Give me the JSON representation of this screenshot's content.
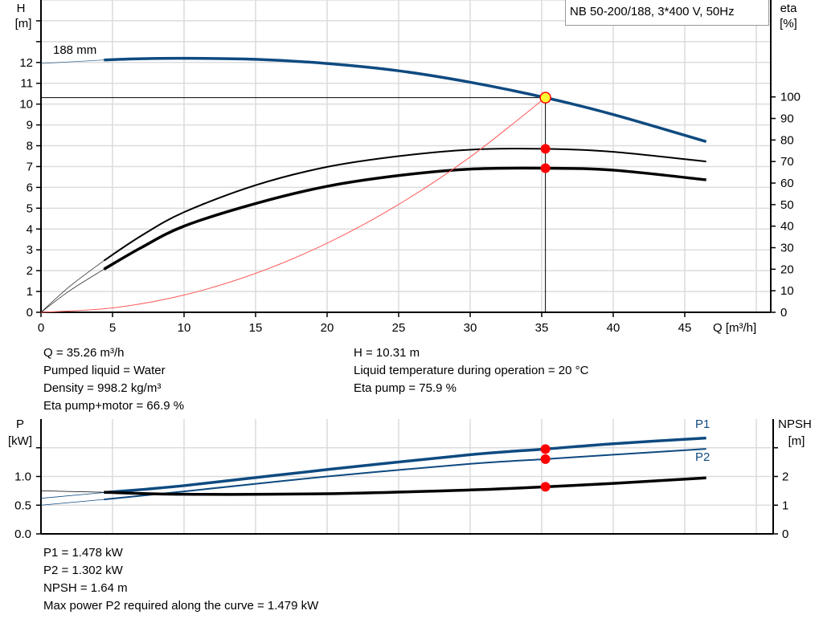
{
  "chart_data": [
    {
      "type": "line",
      "title": "NB 50-200/188, 3*400 V, 50Hz",
      "impeller_label": "188 mm",
      "xlabel": "Q [m³/h]",
      "ylabel_left": [
        "H",
        "[m]"
      ],
      "ylabel_right": [
        "eta",
        "[%]"
      ],
      "xlim": [
        0,
        50
      ],
      "ylim_left": [
        0,
        15
      ],
      "ylim_right": [
        0,
        145
      ],
      "x_ticks": [
        0,
        5,
        10,
        15,
        20,
        25,
        30,
        35,
        40,
        45
      ],
      "y_left_ticks": [
        0,
        1,
        2,
        3,
        4,
        5,
        6,
        7,
        8,
        9,
        10,
        11,
        12
      ],
      "y_right_ticks": [
        0,
        10,
        20,
        30,
        40,
        50,
        60,
        70,
        80,
        90,
        100
      ],
      "grid": true,
      "colors": {
        "head": "#0e4a80",
        "eta": "#000000",
        "system": "#ff5a5a",
        "marker": "#ff0000",
        "duty_marker": "#ffff33"
      },
      "duty_point": {
        "Q": 35.26,
        "H": 10.31,
        "eta_pump": 75.9,
        "eta_total": 66.9
      },
      "series": [
        {
          "key": "head",
          "axis": "left",
          "x": [
            4.4,
            7,
            10,
            15,
            20,
            25,
            30,
            35.26,
            40,
            46.5
          ],
          "y": [
            12.12,
            12.18,
            12.2,
            12.15,
            11.95,
            11.6,
            11.05,
            10.31,
            9.5,
            8.2
          ],
          "ext_x": [
            0,
            4.4
          ],
          "ext_y": [
            11.95,
            12.12
          ]
        },
        {
          "key": "eta_pump",
          "axis": "right",
          "x": [
            4.4,
            7,
            10,
            15,
            20,
            25,
            30,
            35.26,
            40,
            46.5
          ],
          "y": [
            24,
            35.5,
            46.5,
            59,
            67.5,
            72.5,
            75.5,
            75.9,
            74.5,
            70
          ],
          "ext_x": [
            0,
            2,
            4.4
          ],
          "ext_y": [
            0,
            12,
            24
          ]
        },
        {
          "key": "eta_total",
          "axis": "right",
          "x": [
            4.4,
            7,
            10,
            15,
            20,
            25,
            30,
            35.26,
            40,
            46.5
          ],
          "y": [
            20,
            30,
            40,
            50.5,
            58.5,
            63.5,
            66.5,
            66.9,
            66,
            61.5
          ],
          "ext_x": [
            0,
            2,
            4.4
          ],
          "ext_y": [
            0,
            10,
            20
          ]
        },
        {
          "key": "system",
          "axis": "left",
          "x": [
            0,
            5,
            10,
            15,
            20,
            25,
            30,
            35.26
          ],
          "y": [
            0,
            0.21,
            0.83,
            1.87,
            3.32,
            5.18,
            7.46,
            10.31
          ]
        }
      ]
    },
    {
      "type": "line",
      "ylabel_left": [
        "P",
        "[kW]"
      ],
      "ylabel_right": [
        "NPSH",
        "[m]"
      ],
      "xlim": [
        0,
        50
      ],
      "ylim_left": [
        0,
        2
      ],
      "ylim_right": [
        0,
        4
      ],
      "y_left_ticks": [
        "0.0",
        "0.5",
        "1.0"
      ],
      "y_right_ticks": [
        0,
        1,
        2
      ],
      "grid": true,
      "series": [
        {
          "key": "P1",
          "name": "P1",
          "axis": "left",
          "color": "#0e4a80",
          "x": [
            4.4,
            10,
            20,
            30,
            35.26,
            40,
            46.5
          ],
          "y": [
            0.72,
            0.84,
            1.12,
            1.38,
            1.478,
            1.57,
            1.67
          ],
          "ext_x": [
            0,
            4.4
          ],
          "ext_y": [
            0.62,
            0.72
          ]
        },
        {
          "key": "P2",
          "name": "P2",
          "axis": "left",
          "color": "#0e4a80",
          "x": [
            4.4,
            10,
            20,
            30,
            35.26,
            40,
            46.5
          ],
          "y": [
            0.6,
            0.74,
            1.0,
            1.22,
            1.302,
            1.38,
            1.48
          ],
          "ext_x": [
            0,
            4.4
          ],
          "ext_y": [
            0.5,
            0.6
          ]
        },
        {
          "key": "NPSH",
          "axis": "right",
          "color": "#000000",
          "x": [
            4.4,
            10,
            20,
            30,
            35.26,
            40,
            46.5
          ],
          "y": [
            1.45,
            1.38,
            1.4,
            1.53,
            1.64,
            1.76,
            1.95
          ],
          "ext_x": [
            0,
            4.4
          ],
          "ext_y": [
            1.5,
            1.45
          ]
        }
      ],
      "duty_Q": 35.26
    }
  ],
  "info_top_left": [
    "Q = 35.26 m³/h",
    "Pumped liquid = Water",
    "Density = 998.2 kg/m³",
    "Eta pump+motor = 66.9 %"
  ],
  "info_top_right": [
    "H = 10.31 m",
    "Liquid temperature during operation = 20 °C",
    "Eta pump = 75.9 %"
  ],
  "info_bottom": [
    "P1 = 1.478 kW",
    "P2 = 1.302 kW",
    "NPSH = 1.64 m",
    "Max power P2 required along the curve = 1.479 kW"
  ]
}
